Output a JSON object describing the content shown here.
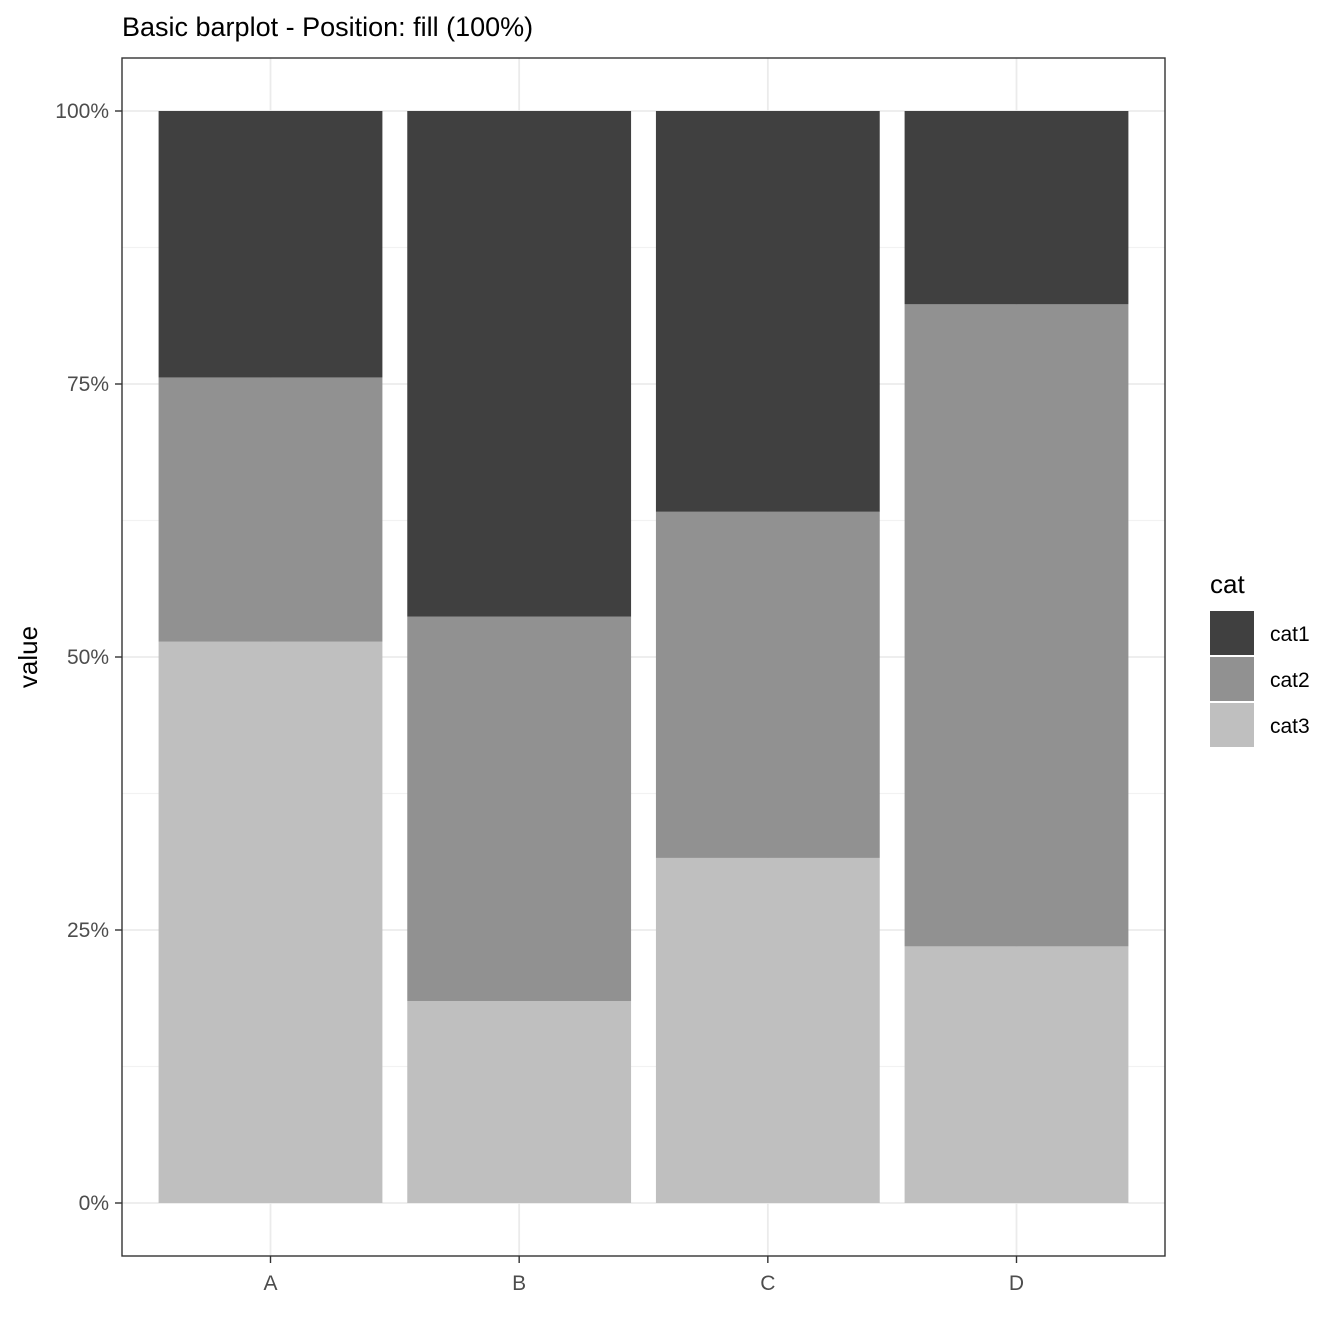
{
  "chart_data": {
    "type": "bar",
    "stacking": "fill",
    "title": "Basic barplot - Position: fill (100%)",
    "xlabel": "",
    "ylabel": "value",
    "categories": [
      "A",
      "B",
      "C",
      "D"
    ],
    "y_tick_labels": [
      "0%",
      "25%",
      "50%",
      "75%",
      "100%"
    ],
    "ylim": [
      0,
      1
    ],
    "grid": true,
    "legend": {
      "title": "cat",
      "placement": "right"
    },
    "series": [
      {
        "name": "cat1",
        "color": "#404040",
        "values": [
          0.244,
          0.463,
          0.367,
          0.177
        ]
      },
      {
        "name": "cat2",
        "color": "#919191",
        "values": [
          0.242,
          0.352,
          0.317,
          0.588
        ]
      },
      {
        "name": "cat3",
        "color": "#bfbfbf",
        "values": [
          0.514,
          0.185,
          0.316,
          0.235
        ]
      }
    ]
  }
}
